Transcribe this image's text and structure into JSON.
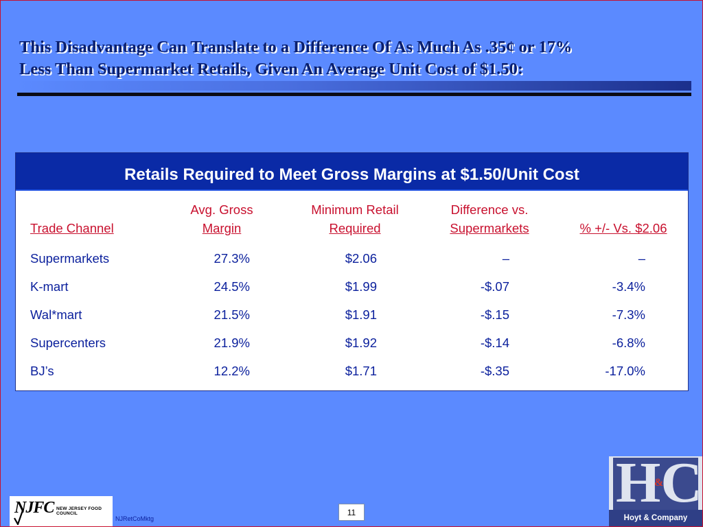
{
  "title": {
    "line1": "This Disadvantage Can Translate to a Difference Of As Much As .35¢ or 17%",
    "line2": "Less Than Supermarket Retails, Given An Average Unit Cost of $1.50:"
  },
  "table": {
    "heading": "Retails Required to Meet Gross Margins at $1.50/Unit Cost",
    "columns": {
      "channel": "Trade Channel",
      "margin_top": "Avg. Gross",
      "margin_bottom": "Margin",
      "retail_top": "Minimum Retail",
      "retail_bottom": "Required",
      "diff_top": "Difference vs.",
      "diff_bottom": "Supermarkets",
      "pct": "% +/- Vs. $2.06"
    },
    "rows": [
      {
        "channel": "Supermarkets",
        "margin": "27.3%",
        "retail": "$2.06",
        "diff": "–",
        "pct": "–"
      },
      {
        "channel": "K-mart",
        "margin": "24.5%",
        "retail": "$1.99",
        "diff": "-$.07",
        "pct": "-3.4%"
      },
      {
        "channel": "Wal*mart",
        "margin": "21.5%",
        "retail": "$1.91",
        "diff": "-$.15",
        "pct": "-7.3%"
      },
      {
        "channel": "Supercenters",
        "margin": "21.9%",
        "retail": "$1.92",
        "diff": "-$.14",
        "pct": "-6.8%"
      },
      {
        "channel": "BJ’s",
        "margin": "12.2%",
        "retail": "$1.71",
        "diff": "-$.35",
        "pct": "-17.0%"
      }
    ]
  },
  "footer": {
    "logo_mark": "NJFC",
    "logo_name": "NEW JERSEY FOOD COUNCIL",
    "code": "NJRetCoMktg",
    "page_number": "11",
    "partner_logo_letters": "HC",
    "partner_logo_amp": "&",
    "partner_name": "Hoyt & Company"
  },
  "colors": {
    "background": "#5b8aff",
    "title_text": "#0a1f6e",
    "table_header_bg": "#0a2aa6",
    "column_header_text": "#c8102e",
    "cell_text": "#0a1f9c"
  }
}
